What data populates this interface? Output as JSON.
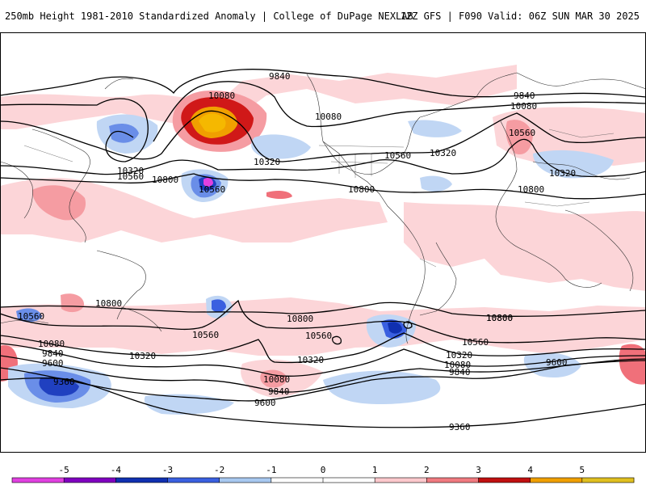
{
  "header": {
    "title_left": "250mb Height 1981-2010 Standardized Anomaly | College of DuPage NEXLAB",
    "title_right": "12Z GFS | F090 Valid: 06Z SUN MAR 30 2025"
  },
  "colorbar": {
    "ticks": [
      "-5",
      "-4",
      "-3",
      "-2",
      "-1",
      "0",
      "1",
      "2",
      "3",
      "4",
      "5"
    ],
    "colors": [
      "#e040e0",
      "#8000c0",
      "#1030b0",
      "#3a60e0",
      "#a8c8f0",
      "#ffffff",
      "#ffffff",
      "#fcc8cc",
      "#f07a80",
      "#c01010",
      "#f0a000",
      "#e0c020"
    ]
  },
  "map": {
    "contour_labels": [
      "9840",
      "9840",
      "10080",
      "10080",
      "10080",
      "10320",
      "10320",
      "10320",
      "10560",
      "10560",
      "10560",
      "10560",
      "10800",
      "10800",
      "10320",
      "10800",
      "10800",
      "10560",
      "10800",
      "10560",
      "10800",
      "10560",
      "10080",
      "9840",
      "9600",
      "10320",
      "9360",
      "10080",
      "9840",
      "9600",
      "10320",
      "10800",
      "10560",
      "10320",
      "10080",
      "9840",
      "9600",
      "9360"
    ]
  }
}
